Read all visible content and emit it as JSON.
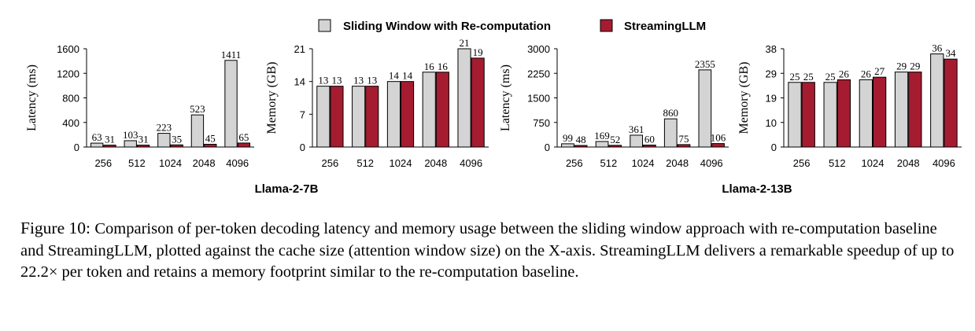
{
  "legend": {
    "items": [
      {
        "label": "Sliding Window with Re-computation",
        "color": "#d4d4d4"
      },
      {
        "label": "StreamingLLM",
        "color": "#a51c30"
      }
    ]
  },
  "models": [
    "Llama-2-7B",
    "Llama-2-13B"
  ],
  "caption": {
    "prefix": "Figure 10:",
    "text": "Comparison of per-token decoding latency and memory usage between the sliding window approach with re-computation baseline and StreamingLLM, plotted against the cache size (attention window size) on the X-axis. StreamingLLM delivers a remarkable speedup of up to 22.2× per token and retains a memory footprint similar to the re-computation baseline."
  },
  "chart_data": [
    {
      "type": "bar",
      "model": "Llama-2-7B",
      "ylabel": "Latency (ms)",
      "categories": [
        "256",
        "512",
        "1024",
        "2048",
        "4096"
      ],
      "ylim": [
        0,
        1600
      ],
      "yticks": [
        "0",
        "400",
        "800",
        "1200",
        "1600"
      ],
      "series": [
        {
          "name": "Sliding Window with Re-computation",
          "values": [
            63,
            103,
            223,
            523,
            1411
          ]
        },
        {
          "name": "StreamingLLM",
          "values": [
            31,
            31,
            35,
            45,
            65
          ]
        }
      ]
    },
    {
      "type": "bar",
      "model": "Llama-2-7B",
      "ylabel": "Memory (GB)",
      "categories": [
        "256",
        "512",
        "1024",
        "2048",
        "4096"
      ],
      "ylim": [
        0,
        21
      ],
      "yticks": [
        "0",
        "7",
        "14",
        "21"
      ],
      "series": [
        {
          "name": "Sliding Window with Re-computation",
          "values": [
            13,
            13,
            14,
            16,
            21
          ]
        },
        {
          "name": "StreamingLLM",
          "values": [
            13,
            13,
            14,
            16,
            19
          ]
        }
      ]
    },
    {
      "type": "bar",
      "model": "Llama-2-13B",
      "ylabel": "Latency (ms)",
      "categories": [
        "256",
        "512",
        "1024",
        "2048",
        "4096"
      ],
      "ylim": [
        0,
        3000
      ],
      "yticks": [
        "0",
        "750",
        "1500",
        "2250",
        "3000"
      ],
      "series": [
        {
          "name": "Sliding Window with Re-computation",
          "values": [
            99,
            169,
            361,
            860,
            2355
          ]
        },
        {
          "name": "StreamingLLM",
          "values": [
            48,
            52,
            60,
            75,
            106
          ]
        }
      ]
    },
    {
      "type": "bar",
      "model": "Llama-2-13B",
      "ylabel": "Memory (GB)",
      "categories": [
        "256",
        "512",
        "1024",
        "2048",
        "4096"
      ],
      "ylim": [
        0,
        38
      ],
      "yticks": [
        "0",
        "10",
        "19",
        "29",
        "38"
      ],
      "series": [
        {
          "name": "Sliding Window with Re-computation",
          "values": [
            25,
            25,
            26,
            29,
            36
          ]
        },
        {
          "name": "StreamingLLM",
          "values": [
            25,
            26,
            27,
            29,
            34
          ]
        }
      ]
    }
  ]
}
